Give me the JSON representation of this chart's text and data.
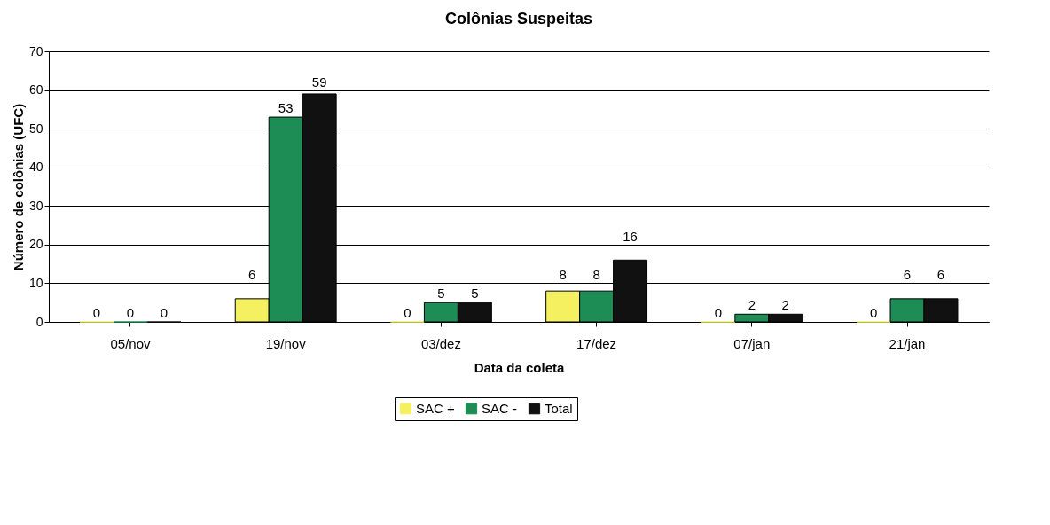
{
  "chart_data": {
    "type": "bar",
    "title": "Colônias Suspeitas",
    "xlabel": "Data da coleta",
    "ylabel": "Número de colônias (UFC)",
    "categories": [
      "05/nov",
      "19/nov",
      "03/dez",
      "17/dez",
      "07/jan",
      "21/jan"
    ],
    "series": [
      {
        "name": "SAC +",
        "color": "#f5f060",
        "values": [
          0,
          6,
          0,
          8,
          0,
          0
        ]
      },
      {
        "name": "SAC -",
        "color": "#1e8c55",
        "values": [
          0,
          53,
          5,
          8,
          2,
          6
        ]
      },
      {
        "name": "Total",
        "color": "#111111",
        "values": [
          0,
          59,
          5,
          16,
          2,
          6
        ]
      }
    ],
    "ylim": [
      0,
      70
    ],
    "yticks": [
      0,
      10,
      20,
      30,
      40,
      50,
      60,
      70
    ],
    "grid": "y",
    "legend": "bottom",
    "data_labels": true
  }
}
